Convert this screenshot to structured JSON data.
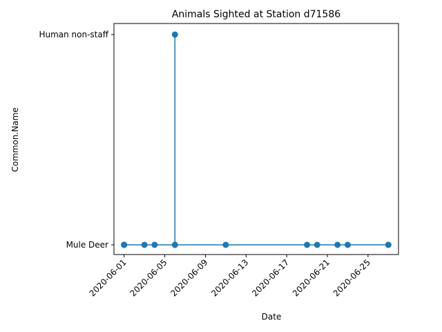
{
  "chart_data": {
    "type": "line",
    "title": "Animals Sighted at Station d71586",
    "xlabel": "Date",
    "ylabel": "Common.Name",
    "y_categories": [
      "Mule Deer",
      "Human non-staff"
    ],
    "x_ticks": [
      "2020-06-01",
      "2020-06-05",
      "2020-06-09",
      "2020-06-13",
      "2020-06-17",
      "2020-06-21",
      "2020-06-25"
    ],
    "xlim": [
      "2020-05-31",
      "2020-06-28"
    ],
    "markers": true,
    "grid": false,
    "color": "#1f77b4",
    "series": [
      {
        "points": [
          {
            "x": "2020-06-01",
            "y": "Mule Deer"
          },
          {
            "x": "2020-06-01",
            "y": "Mule Deer"
          },
          {
            "x": "2020-06-01",
            "y": "Mule Deer"
          },
          {
            "x": "2020-06-03",
            "y": "Mule Deer"
          },
          {
            "x": "2020-06-04",
            "y": "Mule Deer"
          },
          {
            "x": "2020-06-06",
            "y": "Mule Deer"
          },
          {
            "x": "2020-06-06",
            "y": "Human non-staff"
          },
          {
            "x": "2020-06-06",
            "y": "Mule Deer"
          },
          {
            "x": "2020-06-11",
            "y": "Mule Deer"
          },
          {
            "x": "2020-06-19",
            "y": "Mule Deer"
          },
          {
            "x": "2020-06-20",
            "y": "Mule Deer"
          },
          {
            "x": "2020-06-22",
            "y": "Mule Deer"
          },
          {
            "x": "2020-06-23",
            "y": "Mule Deer"
          },
          {
            "x": "2020-06-27",
            "y": "Mule Deer"
          },
          {
            "x": "2020-06-27",
            "y": "Mule Deer"
          }
        ]
      }
    ]
  }
}
